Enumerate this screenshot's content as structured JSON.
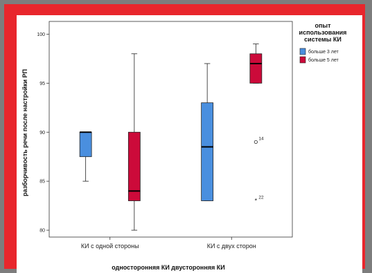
{
  "chart_data": {
    "type": "boxplot",
    "ylabel": "разборчивость речи после настройки РП",
    "xlabel": "односторонняя КИ двусторонняя КИ",
    "ylim": [
      79.3,
      101.3
    ],
    "yticks": [
      80,
      85,
      90,
      95,
      100
    ],
    "grid": false,
    "legend_position": "top-right",
    "legend": {
      "title": [
        "опыт",
        "использования",
        "системы КИ"
      ],
      "entries": [
        {
          "name": "больше 3 лет",
          "color": "#4a8fdf"
        },
        {
          "name": "больше 5 лет",
          "color": "#cc0a3a"
        }
      ]
    },
    "categories": [
      "КИ с одной стороны",
      "КИ с двух сторон"
    ],
    "series": [
      {
        "name": "больше 3 лет",
        "color": "#4a8fdf",
        "boxes": [
          {
            "min": 85,
            "q1": 87.5,
            "median": 90,
            "q3": 90,
            "max": 90,
            "outliers": []
          },
          {
            "min": 83,
            "q1": 83,
            "median": 88.5,
            "q3": 93,
            "max": 97,
            "outliers": []
          }
        ]
      },
      {
        "name": "больше 5 лет",
        "color": "#cc0a3a",
        "boxes": [
          {
            "min": 80,
            "q1": 83,
            "median": 84,
            "q3": 90,
            "max": 98,
            "outliers": []
          },
          {
            "min": 95,
            "q1": 95,
            "median": 97,
            "q3": 98,
            "max": 99,
            "outliers": [
              {
                "value": 89,
                "label": "14",
                "symbol": "circle"
              },
              {
                "value": 83,
                "label": "22",
                "symbol": "star"
              }
            ]
          }
        ]
      }
    ]
  }
}
